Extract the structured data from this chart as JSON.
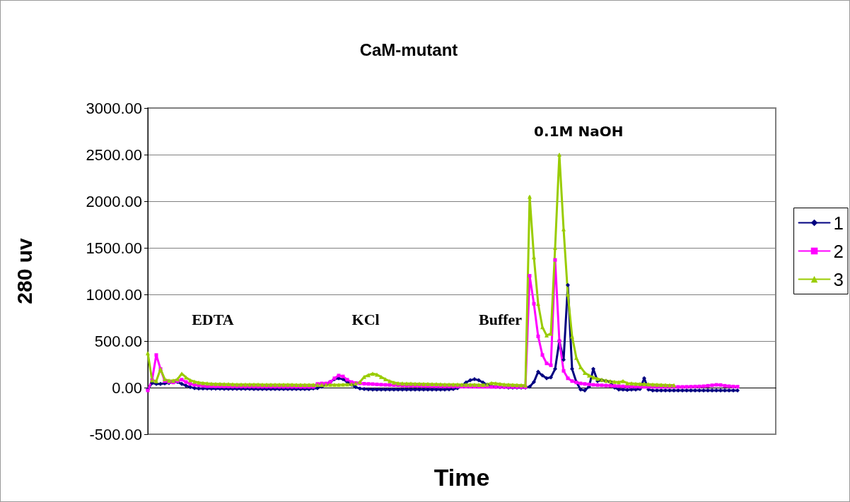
{
  "chart_data": {
    "type": "line",
    "title": "CaM-mutant",
    "xlabel": "Time",
    "ylabel": "280 uv",
    "categories": [
      null,
      null,
      null,
      null,
      null,
      null,
      null,
      null,
      null,
      null,
      null,
      null,
      null,
      null,
      null,
      null,
      null,
      null,
      null,
      null,
      null,
      null,
      null,
      null,
      null,
      null,
      null,
      null,
      null,
      null,
      null,
      null,
      null,
      null,
      null,
      null,
      null,
      null,
      null,
      null,
      null,
      null,
      null,
      null,
      null,
      null,
      null,
      null,
      null,
      null,
      null,
      null,
      null,
      null,
      null,
      null,
      null,
      null,
      null,
      null,
      null,
      null,
      null,
      null,
      null,
      null,
      null,
      null,
      null,
      null,
      null,
      null,
      null,
      null,
      null,
      null,
      null,
      null,
      null,
      null,
      null,
      null,
      null,
      null,
      null,
      null,
      null,
      null,
      null,
      null,
      null,
      null,
      null,
      null,
      null,
      null,
      null,
      null,
      null,
      null,
      null,
      null,
      null,
      null,
      null,
      null,
      null,
      null,
      null,
      null,
      null,
      null,
      null,
      null,
      null,
      null,
      null,
      null,
      null,
      null,
      null,
      null,
      null,
      null,
      null,
      null,
      null,
      null,
      null,
      null,
      null,
      null,
      null,
      null,
      null,
      null,
      null,
      null,
      null,
      null,
      null,
      null,
      null,
      null,
      null,
      null,
      null,
      null,
      null
    ],
    "series": [
      {
        "name": "1",
        "color": "#000080",
        "marker": "diamond",
        "values": [
          -20,
          50,
          40,
          40,
          45,
          50,
          60,
          60,
          40,
          20,
          5,
          -5,
          -10,
          -10,
          -10,
          -12,
          -12,
          -12,
          -13,
          -13,
          -13,
          -14,
          -14,
          -14,
          -14,
          -15,
          -15,
          -15,
          -15,
          -15,
          -15,
          -15,
          -15,
          -15,
          -15,
          -15,
          -15,
          -15,
          -15,
          -10,
          -5,
          10,
          30,
          60,
          90,
          100,
          90,
          60,
          30,
          5,
          -10,
          -15,
          -18,
          -20,
          -20,
          -20,
          -20,
          -20,
          -20,
          -20,
          -20,
          -20,
          -20,
          -20,
          -20,
          -20,
          -20,
          -20,
          -20,
          -20,
          -20,
          -18,
          -15,
          -5,
          20,
          55,
          80,
          90,
          80,
          55,
          30,
          15,
          10,
          5,
          5,
          0,
          0,
          0,
          0,
          0,
          10,
          60,
          170,
          130,
          100,
          110,
          200,
          500,
          300,
          1100,
          200,
          60,
          -20,
          -30,
          10,
          200,
          70,
          80,
          70,
          60,
          0,
          -20,
          -20,
          -25,
          -20,
          -20,
          -15,
          100,
          -20,
          -30,
          -30,
          -30,
          -30,
          -30,
          -30,
          -30,
          -30,
          -30,
          -30,
          -30,
          -30,
          -30,
          -30,
          -30,
          -30,
          -30,
          -30,
          -30,
          -30,
          -30,
          null,
          null,
          null,
          null,
          null,
          null,
          null,
          null,
          null
        ]
      },
      {
        "name": "2",
        "color": "#ff00ff",
        "marker": "square",
        "values": [
          -30,
          80,
          350,
          200,
          70,
          60,
          55,
          70,
          85,
          60,
          40,
          30,
          25,
          20,
          15,
          15,
          14,
          14,
          13,
          13,
          12,
          12,
          12,
          11,
          11,
          11,
          10,
          10,
          10,
          10,
          10,
          9,
          9,
          9,
          9,
          9,
          8,
          8,
          8,
          8,
          40,
          45,
          45,
          60,
          100,
          130,
          120,
          85,
          60,
          50,
          45,
          42,
          40,
          38,
          35,
          32,
          30,
          28,
          26,
          25,
          22,
          21,
          20,
          19,
          18,
          17,
          16,
          15,
          14,
          13,
          12,
          12,
          11,
          11,
          10,
          10,
          9,
          9,
          8,
          8,
          8,
          7,
          7,
          7,
          6,
          6,
          6,
          5,
          5,
          5,
          1200,
          900,
          550,
          350,
          260,
          240,
          1370,
          500,
          180,
          100,
          70,
          55,
          45,
          40,
          35,
          30,
          27,
          25,
          22,
          20,
          18,
          16,
          14,
          12,
          11,
          10,
          9,
          8,
          8,
          8,
          7,
          7,
          7,
          7,
          8,
          8,
          8,
          9,
          10,
          12,
          13,
          15,
          20,
          25,
          30,
          28,
          20,
          15,
          12,
          10,
          null,
          null,
          null,
          null,
          null,
          null,
          null,
          null,
          null
        ]
      },
      {
        "name": "3",
        "color": "#99cc00",
        "marker": "triangle",
        "values": [
          370,
          80,
          70,
          200,
          90,
          75,
          75,
          90,
          150,
          110,
          80,
          65,
          55,
          50,
          45,
          42,
          40,
          40,
          38,
          38,
          36,
          35,
          35,
          35,
          34,
          34,
          34,
          33,
          33,
          33,
          33,
          32,
          32,
          32,
          32,
          31,
          31,
          31,
          31,
          31,
          30,
          30,
          30,
          30,
          30,
          30,
          32,
          35,
          38,
          45,
          60,
          115,
          135,
          150,
          140,
          115,
          90,
          70,
          55,
          48,
          45,
          44,
          43,
          42,
          41,
          40,
          39,
          38,
          37,
          36,
          35,
          35,
          34,
          34,
          33,
          33,
          32,
          32,
          31,
          30,
          35,
          50,
          45,
          40,
          35,
          32,
          30,
          28,
          26,
          25,
          2050,
          1400,
          900,
          650,
          560,
          580,
          1500,
          2500,
          1700,
          1000,
          550,
          320,
          220,
          160,
          130,
          110,
          95,
          85,
          75,
          68,
          62,
          58,
          70,
          48,
          45,
          42,
          40,
          38,
          36,
          34,
          32,
          30,
          28,
          27,
          26,
          null,
          null,
          null,
          null,
          null,
          null,
          null,
          null,
          null,
          null,
          null,
          null,
          null,
          null,
          null,
          null,
          null,
          null,
          null,
          null,
          null,
          null,
          null,
          null
        ]
      }
    ],
    "ylim": [
      -500,
      3000
    ],
    "yticks": [
      {
        "value": -500,
        "label": "-500.00"
      },
      {
        "value": 0,
        "label": "0.00"
      },
      {
        "value": 500,
        "label": "500.00"
      },
      {
        "value": 1000,
        "label": "1000.00"
      },
      {
        "value": 1500,
        "label": "1500.00"
      },
      {
        "value": 2000,
        "label": "2000.00"
      },
      {
        "value": 2500,
        "label": "2500.00"
      },
      {
        "value": 3000,
        "label": "3000.00"
      }
    ],
    "grid": "y",
    "legend": "right",
    "line_style": "solid",
    "annotations": [
      "EDTA",
      "KCl",
      "Buffer",
      "0.1M NaOH"
    ]
  }
}
